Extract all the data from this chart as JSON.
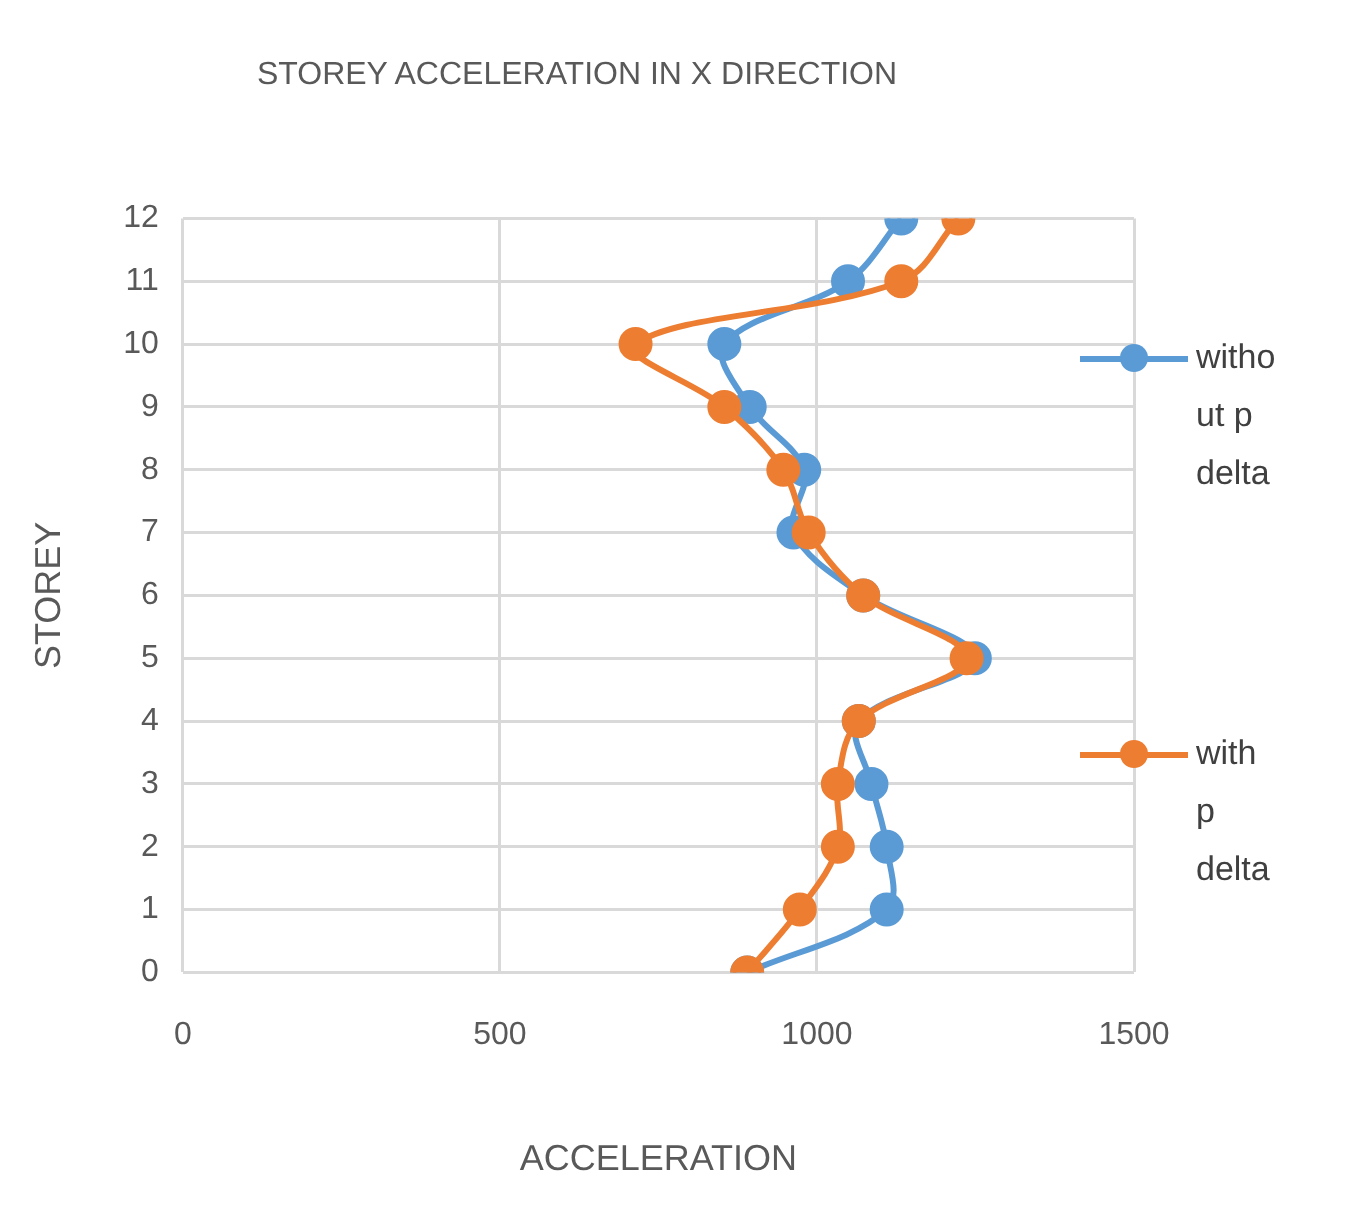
{
  "chart_data": {
    "type": "line",
    "title": "STOREY ACCELERATION IN X DIRECTION",
    "xlabel": "ACCELERATION",
    "ylabel": "STOREY",
    "xlim": [
      0,
      1500
    ],
    "xticks": [
      0,
      500,
      1000,
      1500
    ],
    "ylim": [
      0,
      12
    ],
    "yticks": [
      0,
      1,
      2,
      3,
      4,
      5,
      6,
      7,
      8,
      9,
      10,
      11,
      12
    ],
    "grid": true,
    "legend": "right",
    "marker": "circle",
    "series": [
      {
        "name": "without p delta",
        "color": "#5b9bd5",
        "x": [
          890,
          1110,
          1110,
          1086,
          1066,
          1249,
          1073,
          963,
          980,
          894,
          854,
          1049,
          1133
        ],
        "values": [
          0,
          1,
          2,
          3,
          4,
          5,
          6,
          7,
          8,
          9,
          10,
          11,
          12
        ]
      },
      {
        "name": "with p delta",
        "color": "#ed7d31",
        "x": [
          890,
          973,
          1033,
          1033,
          1066,
          1236,
          1073,
          987,
          947,
          854,
          714,
          1133,
          1223
        ],
        "values": [
          0,
          1,
          2,
          3,
          4,
          5,
          6,
          7,
          8,
          9,
          10,
          11,
          12
        ]
      }
    ]
  }
}
